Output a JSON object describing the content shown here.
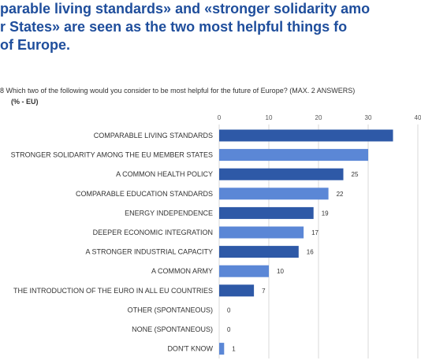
{
  "headline": {
    "line1": "parable living standards» and «stronger solidarity amo",
    "line2": "r States» are seen as the two most helpful things fo",
    "line3": "of Europe."
  },
  "question": "8  Which two of the following would you consider to be most helpful for the future of Europe? (MAX. 2 ANSWERS)",
  "unit": "(% - EU)",
  "colors": {
    "headline": "#1f4e9c",
    "bar_primary": "#2e59a7",
    "bar_secondary": "#5b87d6",
    "grid": "#d9d9d9"
  },
  "chart_data": {
    "type": "bar",
    "orientation": "horizontal",
    "categories": [
      "COMPARABLE LIVING STANDARDS",
      "STRONGER SOLIDARITY AMONG THE EU MEMBER STATES",
      "A COMMON HEALTH POLICY",
      "COMPARABLE EDUCATION STANDARDS",
      "ENERGY INDEPENDENCE",
      "DEEPER ECONOMIC INTEGRATION",
      "A STRONGER INDUSTRIAL CAPACITY",
      "A COMMON ARMY",
      "THE INTRODUCTION OF THE EURO IN ALL EU COUNTRIES",
      "OTHER (SPONTANEOUS)",
      "NONE (SPONTANEOUS)",
      "DON'T KNOW"
    ],
    "values": [
      35,
      30,
      25,
      22,
      19,
      17,
      16,
      10,
      7,
      0,
      0,
      1
    ],
    "value_labels": [
      "",
      "",
      "25",
      "22",
      "19",
      "17",
      "16",
      "10",
      "7",
      "0",
      "0",
      "1"
    ],
    "bar_tone": [
      "primary",
      "secondary",
      "primary",
      "secondary",
      "primary",
      "secondary",
      "primary",
      "secondary",
      "primary",
      "secondary",
      "primary",
      "secondary"
    ],
    "xticks": [
      "0",
      "10",
      "20",
      "30",
      "40"
    ],
    "xlim": [
      0,
      40
    ],
    "grid": true
  }
}
